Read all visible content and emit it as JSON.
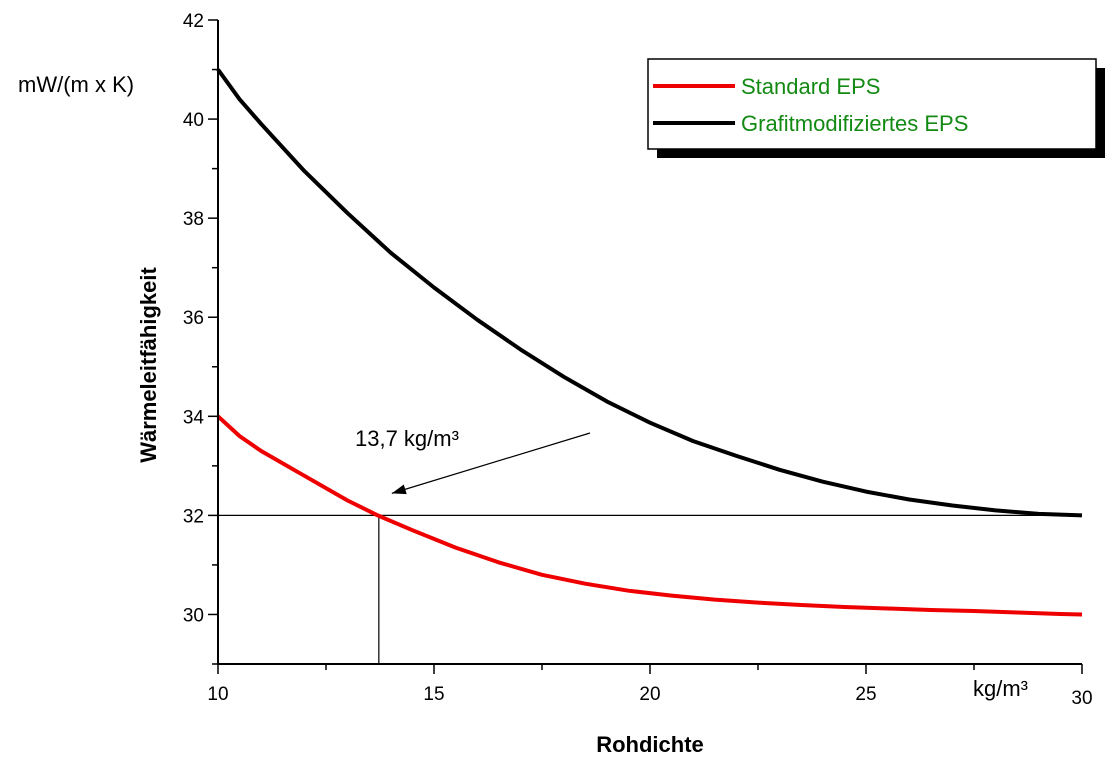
{
  "chart_data": {
    "type": "line",
    "title": "",
    "xlabel": "Rohdichte",
    "ylabel": "Wärmeleitfähigkeit",
    "x_unit": "kg/m³",
    "y_unit": "mW/(m x K)",
    "xlim": [
      10,
      30
    ],
    "ylim": [
      29,
      42
    ],
    "x_ticks": [
      10,
      15,
      20,
      25,
      30
    ],
    "y_ticks": [
      30,
      32,
      34,
      36,
      38,
      40,
      42
    ],
    "grid": false,
    "legend_position": "top-right",
    "legend_text_color": "#138a13",
    "series": [
      {
        "name": "Standard EPS",
        "color": "#ee0000",
        "x": [
          10,
          10.5,
          11,
          12,
          13,
          13.7,
          14.5,
          15.5,
          16.5,
          17.5,
          18.5,
          19.5,
          20.5,
          21.5,
          22.5,
          23.5,
          24.5,
          25.5,
          26.5,
          27.5,
          28.5,
          29.5,
          30
        ],
        "y": [
          34.0,
          33.6,
          33.3,
          32.8,
          32.3,
          32.0,
          31.7,
          31.35,
          31.05,
          30.8,
          30.62,
          30.48,
          30.38,
          30.3,
          30.24,
          30.19,
          30.15,
          30.12,
          30.09,
          30.07,
          30.04,
          30.01,
          30.0
        ]
      },
      {
        "name": "Grafitmodifiziertes EPS",
        "color": "#000000",
        "x": [
          10,
          10.5,
          11,
          12,
          13,
          14,
          15,
          16,
          17,
          18,
          19,
          20,
          21,
          22,
          23,
          24,
          25,
          26,
          27,
          28,
          29,
          30
        ],
        "y": [
          41.0,
          40.4,
          39.9,
          38.95,
          38.1,
          37.3,
          36.6,
          35.95,
          35.35,
          34.8,
          34.3,
          33.87,
          33.5,
          33.2,
          32.92,
          32.68,
          32.48,
          32.32,
          32.2,
          32.1,
          32.03,
          32.0
        ]
      }
    ],
    "reference_point": {
      "x": 13.7,
      "y": 32
    },
    "annotations": [
      {
        "text": "13,7 kg/m³"
      }
    ]
  }
}
